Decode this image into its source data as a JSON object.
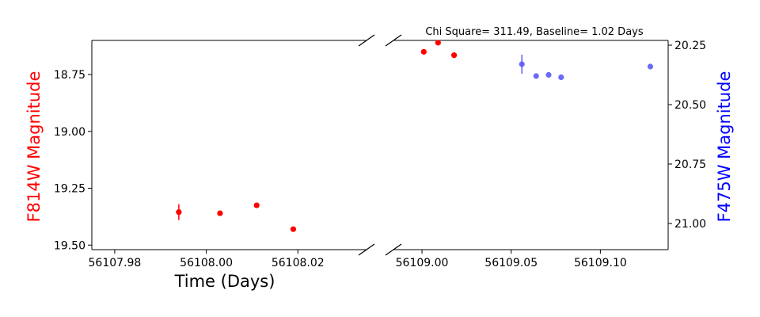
{
  "chart_data": {
    "type": "scatter",
    "title": "Chi Square= 311.49, Baseline= 1.02 Days",
    "xlabel": "Time (Days)",
    "ylabel_left": "F814W Magnitude",
    "ylabel_right": "F475W Magnitude",
    "colors": {
      "F814W": "#ff0000",
      "F475W": "#5b5bf5",
      "left_label": "#ff0000",
      "right_label": "#0000ff"
    },
    "left_panel": {
      "xlim": [
        56107.975,
        56108.035
      ],
      "xticks": [
        56107.98,
        56108.0,
        56108.02
      ],
      "xtick_labels": [
        "56107.98",
        "56108.00",
        "56108.02"
      ],
      "ylim": [
        19.52,
        18.6
      ],
      "yticks": [
        18.75,
        19.0,
        19.25,
        19.5
      ],
      "ytick_labels": [
        "18.75",
        "19.00",
        "19.25",
        "19.50"
      ]
    },
    "right_panel": {
      "xlim": [
        56108.984,
        56109.138
      ],
      "xticks": [
        56109.0,
        56109.05,
        56109.1
      ],
      "xtick_labels": [
        "56109.00",
        "56109.05",
        "56109.10"
      ],
      "ylim": [
        21.11,
        20.23
      ],
      "yticks": [
        20.25,
        20.5,
        20.75,
        21.0
      ],
      "ytick_labels": [
        "20.25",
        "20.50",
        "20.75",
        "21.00"
      ]
    },
    "series": [
      {
        "name": "F814W",
        "axis": "left",
        "points": [
          {
            "x": 56107.994,
            "y": 19.355,
            "err": 0.035
          },
          {
            "x": 56108.003,
            "y": 19.36,
            "err": 0
          },
          {
            "x": 56108.011,
            "y": 19.325,
            "err": 0
          },
          {
            "x": 56108.019,
            "y": 19.43,
            "err": 0
          },
          {
            "x": 56109.001,
            "y": 18.65,
            "err": 0
          },
          {
            "x": 56109.009,
            "y": 18.61,
            "err": 0
          },
          {
            "x": 56109.018,
            "y": 18.665,
            "err": 0
          }
        ]
      },
      {
        "name": "F475W",
        "axis": "right",
        "points": [
          {
            "x": 56109.056,
            "y": 20.33,
            "err": 0.04
          },
          {
            "x": 56109.064,
            "y": 20.38,
            "err": 0
          },
          {
            "x": 56109.071,
            "y": 20.375,
            "err": 0
          },
          {
            "x": 56109.078,
            "y": 20.385,
            "err": 0
          },
          {
            "x": 56109.128,
            "y": 20.34,
            "err": 0
          }
        ]
      }
    ]
  }
}
